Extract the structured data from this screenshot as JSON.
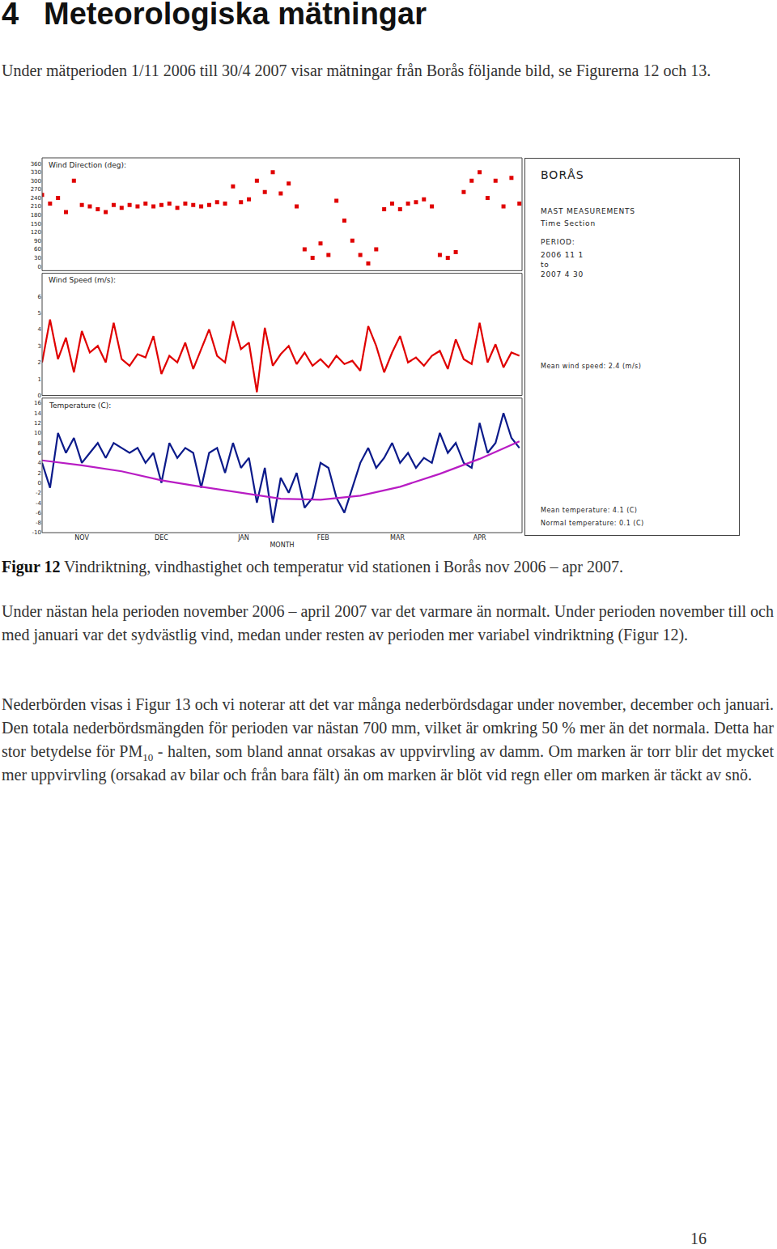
{
  "heading": {
    "number": "4",
    "text": "Meteorologiska mätningar"
  },
  "intro": "Under mätperioden 1/11 2006 till 30/4 2007 visar mätningar från Borås följande bild, se Figurerna 12 och 13.",
  "figure": {
    "side_panel": {
      "station": "BORÅS",
      "line1": "MAST MEASUREMENTS",
      "line2": "Time Section",
      "period_label": "PERIOD:",
      "period_start": "2006  11  1",
      "period_to": "to",
      "period_end": "2007  4  30",
      "mean_wind_speed": "Mean wind speed: 2.4 (m/s)",
      "mean_temperature": "Mean temperature: 4.1 (C)",
      "normal_temperature": "Normal temperature: 0.1 (C)"
    },
    "caption_label": "Figur 12",
    "caption_text": " Vindriktning, vindhastighet och temperatur vid stationen i Borås nov 2006 – apr 2007."
  },
  "chart_data": [
    {
      "type": "scatter",
      "title": "Wind Direction (deg):",
      "x": [
        0,
        3,
        6,
        9,
        12,
        15,
        18,
        21,
        24,
        27,
        30,
        33,
        36,
        39,
        42,
        45,
        48,
        51,
        54,
        57,
        60,
        63,
        66,
        69,
        72,
        75,
        78,
        81,
        84,
        87,
        90,
        93,
        96,
        99,
        102,
        105,
        108,
        111,
        114,
        117,
        120,
        123,
        126,
        129,
        132,
        135,
        138,
        141,
        144,
        147,
        150,
        153,
        156,
        159,
        162,
        165,
        168,
        171,
        174,
        177,
        180
      ],
      "series": [
        {
          "color": "#e00000",
          "marker": "square",
          "values": [
            250,
            220,
            240,
            190,
            300,
            215,
            210,
            200,
            190,
            215,
            205,
            215,
            210,
            220,
            210,
            215,
            220,
            205,
            220,
            215,
            210,
            215,
            225,
            220,
            280,
            225,
            235,
            300,
            260,
            330,
            255,
            290,
            210,
            60,
            30,
            80,
            40,
            230,
            160,
            90,
            40,
            10,
            60,
            200,
            220,
            200,
            220,
            225,
            235,
            210,
            40,
            30,
            50,
            260,
            300,
            330,
            240,
            300,
            210,
            310,
            220
          ]
        }
      ],
      "xlim": [
        0,
        181
      ],
      "ylim": [
        -15,
        380
      ],
      "yticks": [
        0,
        30,
        60,
        90,
        120,
        150,
        180,
        210,
        240,
        270,
        300,
        330,
        360
      ],
      "grid": false,
      "tick_labels": "y"
    },
    {
      "type": "line",
      "title": "Wind Speed (m/s):",
      "x": [
        0,
        3,
        6,
        9,
        12,
        15,
        18,
        21,
        24,
        27,
        30,
        33,
        36,
        39,
        42,
        45,
        48,
        51,
        54,
        57,
        60,
        63,
        66,
        69,
        72,
        75,
        78,
        81,
        84,
        87,
        90,
        93,
        96,
        99,
        102,
        105,
        108,
        111,
        114,
        117,
        120,
        123,
        126,
        129,
        132,
        135,
        138,
        141,
        144,
        147,
        150,
        153,
        156,
        159,
        162,
        165,
        168,
        171,
        174,
        177,
        180
      ],
      "series": [
        {
          "color": "#e00000",
          "line_style": "solid",
          "values": [
            2.0,
            4.6,
            2.2,
            3.5,
            1.4,
            3.9,
            2.6,
            3.0,
            2.0,
            4.4,
            2.2,
            1.8,
            2.5,
            2.3,
            3.6,
            1.3,
            2.4,
            2.0,
            3.2,
            1.6,
            2.8,
            4.0,
            2.4,
            2.0,
            4.5,
            2.8,
            3.2,
            0.2,
            4.1,
            1.8,
            2.5,
            3.0,
            1.9,
            2.6,
            1.8,
            2.2,
            1.7,
            2.4,
            1.9,
            2.1,
            1.5,
            4.2,
            3.0,
            1.4,
            2.6,
            3.6,
            2.0,
            2.3,
            1.8,
            2.4,
            2.7,
            1.6,
            3.4,
            2.2,
            1.9,
            4.4,
            2.0,
            3.1,
            1.7,
            2.6,
            2.4
          ]
        }
      ],
      "xlim": [
        0,
        181
      ],
      "ylim": [
        0,
        7.4
      ],
      "yticks": [
        0,
        1,
        2,
        3,
        4,
        5,
        6
      ],
      "grid": false,
      "tick_labels": "y"
    },
    {
      "type": "line",
      "title": "Temperature (C):",
      "xlabel": "MONTH",
      "series": [
        {
          "color": "#0b1a8a",
          "line_style": "solid",
          "x": [
            0,
            3,
            6,
            9,
            12,
            15,
            18,
            21,
            24,
            27,
            30,
            33,
            36,
            39,
            42,
            45,
            48,
            51,
            54,
            57,
            60,
            63,
            66,
            69,
            72,
            75,
            78,
            81,
            84,
            87,
            90,
            93,
            96,
            99,
            102,
            105,
            108,
            111,
            114,
            117,
            120,
            123,
            126,
            129,
            132,
            135,
            138,
            141,
            144,
            147,
            150,
            153,
            156,
            159,
            162,
            165,
            168,
            171,
            174,
            177,
            180
          ],
          "values": [
            4,
            -1,
            10,
            6,
            9,
            4,
            6,
            8,
            5,
            8,
            7,
            6,
            7,
            4,
            6,
            0,
            8,
            5,
            7,
            6,
            -1,
            6,
            7,
            2,
            8,
            3,
            5,
            -4,
            3,
            -8,
            1,
            -2,
            2,
            -5,
            -3,
            4,
            3,
            -3,
            -6,
            -1,
            4,
            7,
            3,
            5,
            8,
            4,
            6,
            3,
            5,
            4,
            10,
            6,
            8,
            4,
            3,
            12,
            6,
            8,
            14,
            9,
            7
          ]
        },
        {
          "color": "#b81cc4",
          "line_style": "solid",
          "x": [
            0,
            15,
            30,
            45,
            60,
            75,
            90,
            105,
            120,
            135,
            150,
            165,
            180
          ],
          "values": [
            4.5,
            3.5,
            2.3,
            0.5,
            -0.8,
            -2,
            -3.2,
            -3.4,
            -2.6,
            -0.8,
            1.8,
            4.8,
            8.3
          ]
        }
      ],
      "xlim": [
        0,
        181
      ],
      "xticks": [
        {
          "value": 15,
          "label": "NOV"
        },
        {
          "value": 45,
          "label": "DEC"
        },
        {
          "value": 76,
          "label": "JAN"
        },
        {
          "value": 106,
          "label": "FEB"
        },
        {
          "value": 134,
          "label": "MAR"
        },
        {
          "value": 165,
          "label": "APR"
        }
      ],
      "ylim": [
        -10,
        17
      ],
      "yticks": [
        -10,
        -8,
        -6,
        -4,
        -2,
        0,
        2,
        4,
        6,
        8,
        10,
        12,
        14,
        16
      ],
      "grid": false
    }
  ],
  "paragraphs": [
    {
      "parts": [
        {
          "text": "Under nästan hela perioden november 2006 – april 2007 var det varmare än normalt. Under perioden november till och med januari var det sydvästlig vind, medan under resten av perioden mer variabel vindriktning (Figur 12)."
        }
      ]
    },
    {
      "parts": [
        {
          "text": "Nederbörden visas i Figur 13 och vi noterar att det var många nederbördsdagar under november, december och januari. Den totala nederbördsmängden för perioden var nästan 700 mm, vilket är omkring 50 % mer än det normala. Detta har stor betydelse för PM"
        },
        {
          "text": "10",
          "sub": true
        },
        {
          "text": " - halten, som bland annat orsakas av uppvirvling av damm. Om marken är torr blir det mycket mer uppvirvling (orsakad av bilar och från bara fält) än om marken är blöt vid regn eller om marken är täckt av snö."
        }
      ]
    }
  ],
  "page_number": "16"
}
